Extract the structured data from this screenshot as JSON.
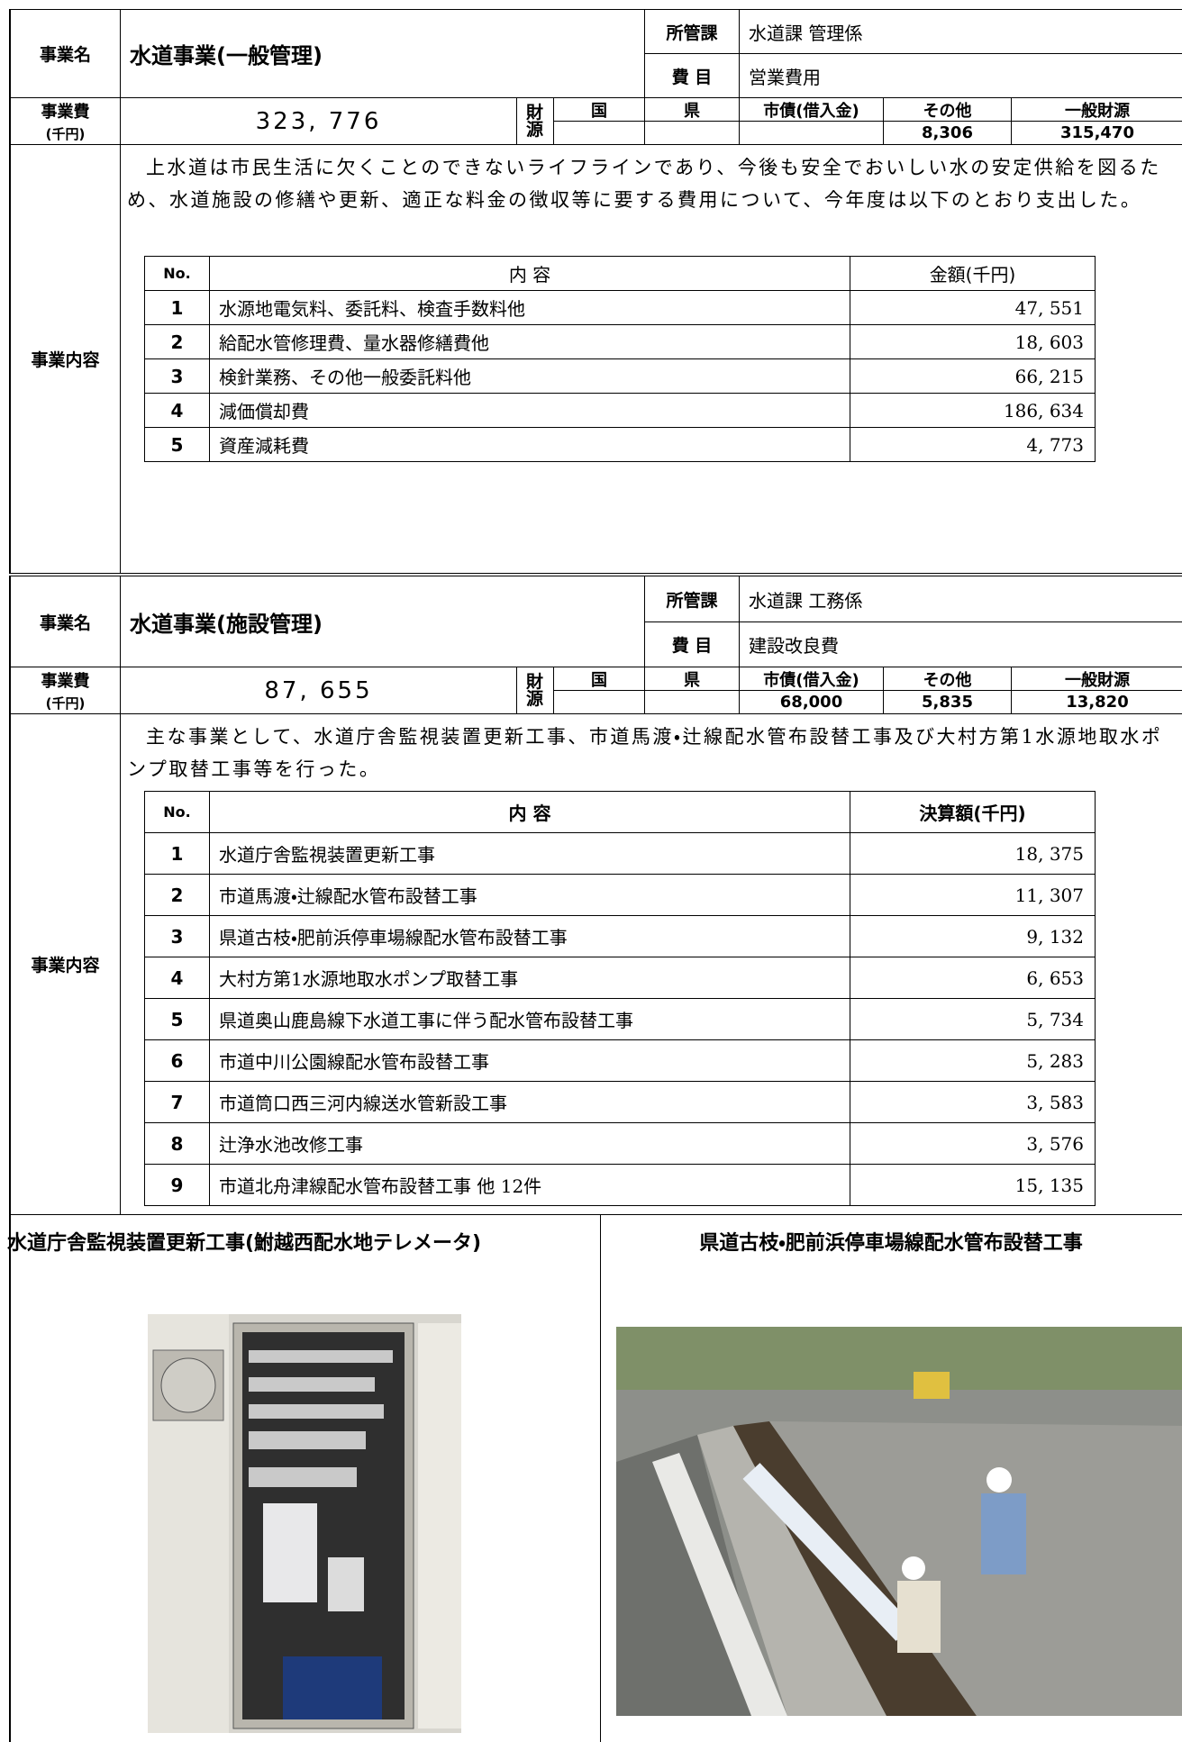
{
  "sections": [
    {
      "name_label": "事業名",
      "name": "水道事業(一般管理)",
      "dept_label": "所管課",
      "dept": "水道課 管理係",
      "item_label": "費 目",
      "item": "営業費用",
      "cost_label": "事業費",
      "cost_unit": "(千円)",
      "cost": "323, 776",
      "source_label": "財源",
      "sources": [
        {
          "label": "国"
        },
        {
          "label": "県"
        },
        {
          "label": "市債(借入金)"
        },
        {
          "label": "その他",
          "value": "8,306"
        },
        {
          "label": "一般財源",
          "value": "315,470"
        }
      ],
      "content_label": "事業内容",
      "description": "上水道は市民生活に欠くことのできないライフラインであり、今後も安全でおいしい水の安定供給を図るため、水道施設の修繕や更新、適正な料金の徴収等に要する費用について、今年度は以下のとおり支出した。",
      "table": {
        "headers": [
          "No.",
          "内 容",
          "金額(千円)"
        ],
        "rows": [
          [
            "1",
            "水源地電気料、委託料、検査手数料他",
            "47, 551"
          ],
          [
            "2",
            "給配水管修理費、量水器修繕費他",
            "18, 603"
          ],
          [
            "3",
            "検針業務、その他一般委託料他",
            "66, 215"
          ],
          [
            "4",
            "減価償却費",
            "186, 634"
          ],
          [
            "5",
            "資産減耗費",
            "4, 773"
          ]
        ]
      }
    },
    {
      "name_label": "事業名",
      "name": "水道事業(施設管理)",
      "dept_label": "所管課",
      "dept": "水道課 工務係",
      "item_label": "費 目",
      "item": "建設改良費",
      "cost_label": "事業費",
      "cost_unit": "(千円)",
      "cost": "87, 655",
      "source_label": "財源",
      "sources": [
        {
          "label": "国"
        },
        {
          "label": "県"
        },
        {
          "label": "市債(借入金)",
          "value": "68,000"
        },
        {
          "label": "その他",
          "value": "5,835"
        },
        {
          "label": "一般財源",
          "value": "13,820"
        }
      ],
      "content_label": "事業内容",
      "description": "主な事業として、水道庁舎監視装置更新工事、市道馬渡・辻線配水管布設替工事及び大村方第1水源地取水ポンプ取替工事等を行った。",
      "table": {
        "headers": [
          "No.",
          "内 容",
          "決算額(千円)"
        ],
        "rows": [
          [
            "1",
            "水道庁舎監視装置更新工事",
            "18, 375"
          ],
          [
            "2",
            "市道馬渡・辻線配水管布設替工事",
            "11, 307"
          ],
          [
            "3",
            "県道古枝・肥前浜停車場線配水管布設替工事",
            "9, 132"
          ],
          [
            "4",
            "大村方第1水源地取水ポンプ取替工事",
            "6, 653"
          ],
          [
            "5",
            "県道奥山鹿島線下水道工事に伴う配水管布設替工事",
            "5, 734"
          ],
          [
            "6",
            "市道中川公園線配水管布設替工事",
            "5, 283"
          ],
          [
            "7",
            "市道筒口西三河内線送水管新設工事",
            "3, 583"
          ],
          [
            "8",
            "辻浄水池改修工事",
            "3, 576"
          ],
          [
            "9",
            "市道北舟津線配水管布設替工事 他 12件",
            "15, 135"
          ]
        ]
      }
    }
  ],
  "photos": [
    {
      "caption": "水道庁舎監視装置更新工事(鮒越西配水地テレメータ)"
    },
    {
      "caption": "県道古枝・肥前浜停車場線配水管布設替工事"
    }
  ]
}
